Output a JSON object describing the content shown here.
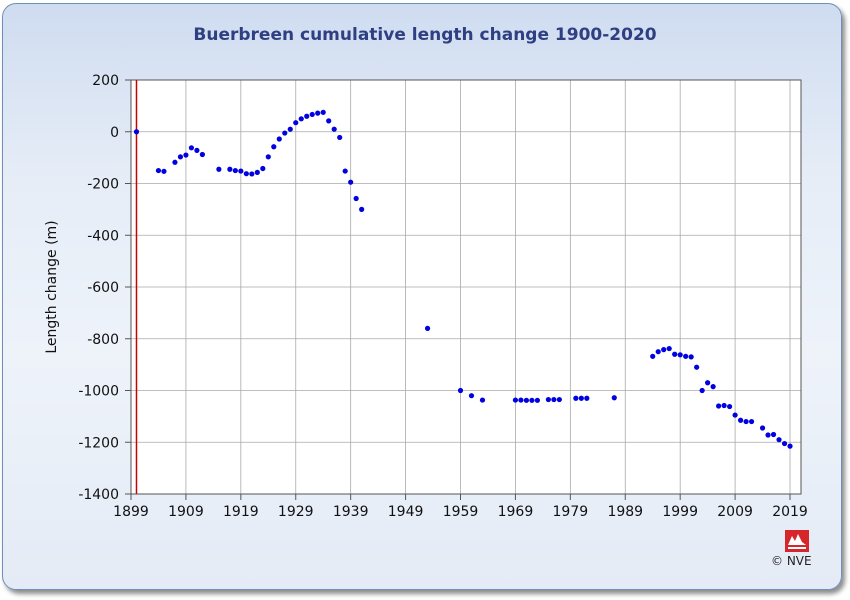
{
  "chart_data": {
    "type": "scatter",
    "title": "Buerbreen cumulative length change 1900-2020",
    "xlabel": "",
    "ylabel": "Length change (m)",
    "xlim": [
      1899,
      2021
    ],
    "ylim": [
      -1400,
      200
    ],
    "xticks": [
      1899,
      1909,
      1919,
      1929,
      1939,
      1949,
      1959,
      1969,
      1979,
      1989,
      1999,
      2009,
      2019
    ],
    "yticks": [
      200,
      0,
      -200,
      -400,
      -600,
      -800,
      -1000,
      -1200,
      -1400
    ],
    "grid": true,
    "reference_line_x": 1900,
    "marker_color": "#0000e0",
    "reference_line_color": "#cc0000",
    "points": [
      [
        1900,
        0
      ],
      [
        1904,
        -150
      ],
      [
        1905,
        -153
      ],
      [
        1907,
        -118
      ],
      [
        1908,
        -97
      ],
      [
        1909,
        -90
      ],
      [
        1910,
        -62
      ],
      [
        1911,
        -72
      ],
      [
        1912,
        -88
      ],
      [
        1915,
        -145
      ],
      [
        1917,
        -145
      ],
      [
        1918,
        -150
      ],
      [
        1919,
        -152
      ],
      [
        1920,
        -162
      ],
      [
        1921,
        -163
      ],
      [
        1922,
        -157
      ],
      [
        1923,
        -142
      ],
      [
        1924,
        -97
      ],
      [
        1925,
        -58
      ],
      [
        1926,
        -28
      ],
      [
        1927,
        -5
      ],
      [
        1928,
        10
      ],
      [
        1929,
        35
      ],
      [
        1930,
        50
      ],
      [
        1931,
        60
      ],
      [
        1932,
        67
      ],
      [
        1933,
        72
      ],
      [
        1934,
        75
      ],
      [
        1935,
        42
      ],
      [
        1936,
        10
      ],
      [
        1937,
        -22
      ],
      [
        1938,
        -152
      ],
      [
        1939,
        -195
      ],
      [
        1940,
        -258
      ],
      [
        1941,
        -300
      ],
      [
        1953,
        -760
      ],
      [
        1959,
        -1000
      ],
      [
        1961,
        -1020
      ],
      [
        1963,
        -1037
      ],
      [
        1969,
        -1037
      ],
      [
        1970,
        -1037
      ],
      [
        1971,
        -1038
      ],
      [
        1972,
        -1038
      ],
      [
        1973,
        -1038
      ],
      [
        1975,
        -1035
      ],
      [
        1976,
        -1035
      ],
      [
        1977,
        -1035
      ],
      [
        1980,
        -1030
      ],
      [
        1981,
        -1030
      ],
      [
        1982,
        -1030
      ],
      [
        1987,
        -1028
      ],
      [
        1994,
        -868
      ],
      [
        1995,
        -850
      ],
      [
        1996,
        -842
      ],
      [
        1997,
        -838
      ],
      [
        1998,
        -860
      ],
      [
        1999,
        -862
      ],
      [
        2000,
        -868
      ],
      [
        2001,
        -870
      ],
      [
        2002,
        -910
      ],
      [
        2003,
        -1000
      ],
      [
        2004,
        -970
      ],
      [
        2005,
        -985
      ],
      [
        2006,
        -1060
      ],
      [
        2007,
        -1058
      ],
      [
        2008,
        -1062
      ],
      [
        2009,
        -1095
      ],
      [
        2010,
        -1115
      ],
      [
        2011,
        -1120
      ],
      [
        2012,
        -1120
      ],
      [
        2014,
        -1145
      ],
      [
        2015,
        -1172
      ],
      [
        2016,
        -1170
      ],
      [
        2017,
        -1190
      ],
      [
        2018,
        -1205
      ],
      [
        2019,
        -1215
      ]
    ]
  },
  "copyright": "© NVE",
  "logo_icon": "nve-logo-icon"
}
